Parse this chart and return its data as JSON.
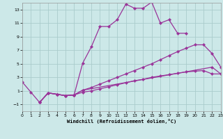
{
  "xlabel": "Windchill (Refroidissement éolien,°C)",
  "background_color": "#cce8e8",
  "grid_color": "#aacccc",
  "line_color": "#993399",
  "xlim": [
    0,
    23
  ],
  "ylim": [
    -2,
    14
  ],
  "xticks": [
    0,
    1,
    2,
    3,
    4,
    5,
    6,
    7,
    8,
    9,
    10,
    11,
    12,
    13,
    14,
    15,
    16,
    17,
    18,
    19,
    20,
    21,
    22,
    23
  ],
  "yticks": [
    -1,
    1,
    3,
    5,
    7,
    9,
    11,
    13
  ],
  "lines": [
    {
      "x": [
        0,
        1,
        2,
        3,
        4,
        5,
        6,
        7,
        8,
        9,
        10,
        11,
        12,
        13,
        14,
        15,
        16,
        17,
        18,
        19
      ],
      "y": [
        2.3,
        0.8,
        -0.7,
        0.7,
        0.5,
        0.3,
        0.4,
        5.1,
        7.5,
        10.5,
        10.5,
        11.5,
        13.8,
        13.2,
        13.2,
        14.1,
        11.0,
        11.5,
        9.5,
        9.5
      ]
    },
    {
      "x": [
        2,
        3,
        4,
        5,
        6,
        7,
        22,
        23
      ],
      "y": [
        -0.7,
        0.7,
        0.5,
        0.3,
        0.4,
        1.1,
        4.5,
        3.5
      ]
    },
    {
      "x": [
        2,
        3,
        4,
        5,
        6,
        7,
        8,
        9,
        10,
        11,
        12,
        13,
        14,
        15,
        16,
        17,
        18,
        19,
        20,
        21,
        22,
        23
      ],
      "y": [
        -0.7,
        0.7,
        0.5,
        0.3,
        0.4,
        1.1,
        1.5,
        2.0,
        2.5,
        3.0,
        3.5,
        4.0,
        4.5,
        5.0,
        5.6,
        6.2,
        6.8,
        7.3,
        7.8,
        7.8,
        6.5,
        4.5
      ]
    },
    {
      "x": [
        2,
        3,
        4,
        5,
        6,
        7,
        8,
        9,
        10,
        11,
        12,
        13,
        14,
        15,
        16,
        17,
        18,
        19,
        20,
        21,
        22,
        23
      ],
      "y": [
        -0.7,
        0.7,
        0.5,
        0.3,
        0.4,
        0.8,
        1.0,
        1.3,
        1.6,
        1.9,
        2.2,
        2.5,
        2.7,
        3.0,
        3.2,
        3.4,
        3.6,
        3.8,
        3.9,
        4.0,
        3.5,
        3.5
      ]
    }
  ]
}
